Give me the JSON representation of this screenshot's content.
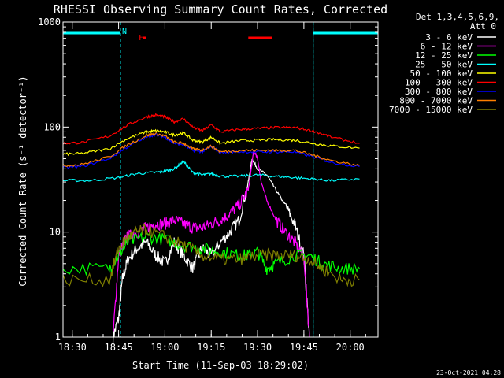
{
  "chart_data": {
    "type": "line",
    "title": "RHESSI Observing Summary Count Rates, Corrected",
    "xlabel": "Start Time (11-Sep-03 18:29:02)",
    "ylabel": "Corrected Count Rate (s⁻¹ detector⁻¹)",
    "y_scale": "log",
    "ylim": [
      1,
      1000
    ],
    "xlim": [
      18.45,
      20.15
    ],
    "x_ticks": [
      {
        "v": 18.5,
        "label": "18:30"
      },
      {
        "v": 18.75,
        "label": "18:45"
      },
      {
        "v": 19.0,
        "label": "19:00"
      },
      {
        "v": 19.25,
        "label": "19:15"
      },
      {
        "v": 19.5,
        "label": "19:30"
      },
      {
        "v": 19.75,
        "label": "19:45"
      },
      {
        "v": 20.0,
        "label": "20:00"
      }
    ],
    "y_ticks": [
      {
        "v": 1,
        "label": "1"
      },
      {
        "v": 10,
        "label": "10"
      },
      {
        "v": 100,
        "label": "100"
      },
      {
        "v": 1000,
        "label": "1000"
      }
    ],
    "legend_header": [
      "Det 1,3,4,5,6,9,",
      "Att 0"
    ],
    "legend_placement": "right",
    "night_periods": [
      [
        18.45,
        18.76
      ],
      [
        19.8,
        20.15
      ]
    ],
    "flags": [
      {
        "label": "N",
        "x": 18.76,
        "color": "#00ffff"
      },
      {
        "label": "F",
        "x": 18.85,
        "color": "#ff0000"
      }
    ],
    "flare_bars": [
      [
        18.88,
        18.9
      ],
      [
        19.45,
        19.58
      ]
    ],
    "series": [
      {
        "name": "3 - 6 keV",
        "color": "#ffffff",
        "x": [
          18.72,
          18.75,
          18.77,
          18.8,
          18.85,
          18.9,
          18.95,
          19.0,
          19.05,
          19.1,
          19.15,
          19.2,
          19.25,
          19.3,
          19.35,
          19.4,
          19.45,
          19.47,
          19.5,
          19.55,
          19.6,
          19.65,
          19.7,
          19.75,
          19.78
        ],
        "y": [
          1,
          1.5,
          3.5,
          5.5,
          7,
          8,
          6,
          5,
          8,
          6,
          4.5,
          7,
          6,
          8,
          10,
          13,
          30,
          50,
          40,
          35,
          25,
          18,
          12,
          6,
          1
        ]
      },
      {
        "name": "6 - 12 keV",
        "color": "#ff00ff",
        "x": [
          18.72,
          18.75,
          18.78,
          18.8,
          18.85,
          18.9,
          18.95,
          19.0,
          19.05,
          19.1,
          19.15,
          19.2,
          19.25,
          19.3,
          19.35,
          19.4,
          19.45,
          19.48,
          19.5,
          19.52,
          19.55,
          19.6,
          19.65,
          19.7,
          19.75,
          19.78
        ],
        "y": [
          1,
          6,
          8,
          9,
          10,
          11,
          12,
          12,
          13,
          12,
          11,
          11,
          12,
          13,
          15,
          18,
          25,
          60,
          50,
          30,
          20,
          13,
          10,
          8,
          6,
          1
        ]
      },
      {
        "name": "12 - 25 keV",
        "color": "#00ff00",
        "x": [
          18.45,
          18.7,
          18.75,
          18.8,
          18.9,
          19.0,
          19.1,
          19.2,
          19.3,
          19.4,
          19.45,
          19.5,
          19.55,
          19.6,
          19.7,
          19.78,
          19.85,
          19.95,
          20.05
        ],
        "y": [
          4.5,
          4.5,
          6,
          8,
          9,
          8.5,
          7.5,
          7,
          6.5,
          6,
          6,
          6.5,
          4.5,
          5,
          6,
          6,
          5,
          4.5,
          4.5
        ]
      },
      {
        "name": "25 - 50 keV",
        "color": "#00ffff",
        "x": [
          18.45,
          18.6,
          18.75,
          18.85,
          18.95,
          19.0,
          19.05,
          19.1,
          19.15,
          19.2,
          19.25,
          19.3,
          19.4,
          19.5,
          19.6,
          19.7,
          19.8,
          19.9,
          20.05
        ],
        "y": [
          31,
          31,
          33,
          36,
          37,
          38,
          40,
          47,
          37,
          35,
          36,
          34,
          34,
          35,
          34,
          33,
          32,
          31,
          32
        ]
      },
      {
        "name": "50 - 100 keV",
        "color": "#ffff00",
        "x": [
          18.45,
          18.55,
          18.7,
          18.8,
          18.9,
          18.95,
          19.0,
          19.05,
          19.1,
          19.15,
          19.2,
          19.25,
          19.3,
          19.4,
          19.5,
          19.6,
          19.7,
          19.8,
          19.9,
          20.05
        ],
        "y": [
          55,
          56,
          62,
          78,
          90,
          92,
          90,
          84,
          88,
          75,
          72,
          80,
          70,
          74,
          75,
          76,
          75,
          70,
          66,
          63
        ]
      },
      {
        "name": "100 - 300 keV",
        "color": "#ff0000",
        "x": [
          18.45,
          18.55,
          18.7,
          18.8,
          18.9,
          18.95,
          19.0,
          19.05,
          19.1,
          19.15,
          19.2,
          19.25,
          19.3,
          19.4,
          19.5,
          19.6,
          19.7,
          19.8,
          19.9,
          20.05
        ],
        "y": [
          70,
          71,
          82,
          105,
          125,
          130,
          125,
          112,
          120,
          100,
          92,
          105,
          90,
          95,
          97,
          99,
          99,
          92,
          80,
          70
        ]
      },
      {
        "name": "300 - 800 keV",
        "color": "#0000ff",
        "x": [
          18.45,
          18.55,
          18.7,
          18.8,
          18.9,
          18.95,
          19.0,
          19.05,
          19.1,
          19.15,
          19.2,
          19.25,
          19.3,
          19.4,
          19.5,
          19.6,
          19.7,
          19.8,
          19.9,
          20.05
        ],
        "y": [
          41,
          42,
          50,
          65,
          80,
          85,
          80,
          70,
          68,
          60,
          58,
          65,
          57,
          58,
          58,
          58,
          58,
          52,
          46,
          42
        ]
      },
      {
        "name": "800 - 7000 keV",
        "color": "#ff7f00",
        "x": [
          18.45,
          18.55,
          18.7,
          18.8,
          18.9,
          18.95,
          19.0,
          19.05,
          19.1,
          19.15,
          19.2,
          19.25,
          19.3,
          19.4,
          19.5,
          19.6,
          19.7,
          19.8,
          19.9,
          20.05
        ],
        "y": [
          43,
          44,
          52,
          68,
          83,
          87,
          82,
          72,
          70,
          62,
          60,
          66,
          58,
          60,
          60,
          60,
          60,
          54,
          48,
          43
        ]
      },
      {
        "name": "7000 - 15000 keV",
        "color": "#808000",
        "x": [
          18.45,
          18.7,
          18.75,
          18.8,
          18.85,
          18.9,
          19.0,
          19.1,
          19.2,
          19.3,
          19.4,
          19.5,
          19.6,
          19.7,
          19.78,
          19.85,
          19.95,
          20.05
        ],
        "y": [
          3.5,
          3.5,
          7,
          9,
          10,
          10.5,
          9,
          7.5,
          6,
          5.5,
          5.5,
          6,
          6,
          6,
          5.5,
          4.5,
          3.5,
          3.5
        ]
      }
    ],
    "footer": "23-Oct-2021 04:28"
  }
}
